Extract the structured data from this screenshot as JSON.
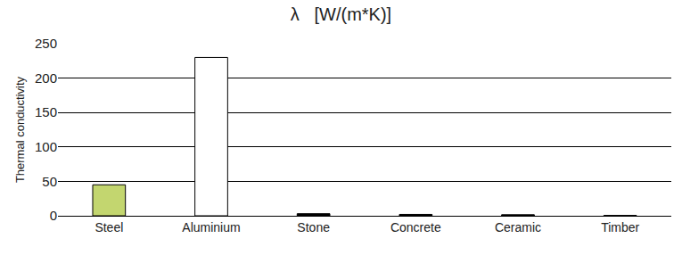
{
  "chart_data": {
    "type": "bar",
    "title": "λ   [W/(m*K)]",
    "y_label": "Thermal conductivity",
    "categories": [
      "Steel",
      "Aluminium",
      "Stone",
      "Concrete",
      "Ceramic",
      "Timber"
    ],
    "values": [
      45,
      230,
      3,
      2,
      1.5,
      0.5
    ],
    "colors": [
      "#c3d66f",
      "#ffffff",
      "#000000",
      "#000000",
      "#000000",
      "#000000"
    ],
    "ylim": [
      0,
      250
    ],
    "yticks": [
      0,
      50,
      100,
      150,
      200,
      250
    ],
    "grid": true
  }
}
